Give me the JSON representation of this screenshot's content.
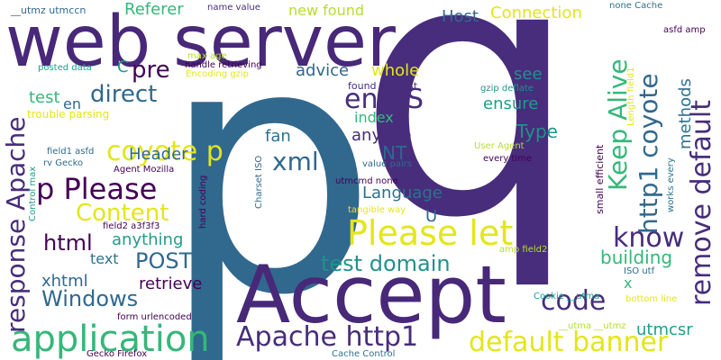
{
  "palette": {
    "dark": "#440154",
    "indigo": "#472d7b",
    "purple": "#482878",
    "blue": "#31688e",
    "steel": "#2c728e",
    "teal": "#21918c",
    "teal2": "#1f9e89",
    "green": "#35b779",
    "lime": "#6ece58",
    "yellowgreen": "#b5de2b",
    "yellow": "#e3e61a"
  },
  "words": [
    {
      "text": "q",
      "color": "#472d7b"
    },
    {
      "text": "p",
      "color": "#31688e"
    },
    {
      "text": "web server",
      "color": "#482878"
    },
    {
      "text": "Accept",
      "color": "#482878"
    },
    {
      "text": "application",
      "color": "#35b779"
    },
    {
      "text": "Please let",
      "color": "#e3e61a"
    },
    {
      "text": "Apache http1",
      "color": "#472d7b"
    },
    {
      "text": "default banner",
      "color": "#e3e61a"
    },
    {
      "text": "remove default",
      "color": "#472d7b"
    },
    {
      "text": "response Apache",
      "color": "#472d7b"
    },
    {
      "text": "p Please",
      "color": "#440154"
    },
    {
      "text": "coyote p",
      "color": "#e3e61a"
    },
    {
      "text": "know",
      "color": "#472d7b"
    },
    {
      "text": "http1 coyote",
      "color": "#31688e"
    },
    {
      "text": "Keep Alive",
      "color": "#35b779"
    },
    {
      "text": "Content",
      "color": "#e3e61a"
    },
    {
      "text": "test domain",
      "color": "#21918c"
    },
    {
      "text": "Windows",
      "color": "#31688e"
    },
    {
      "text": "code",
      "color": "#472d7b"
    },
    {
      "text": "en US",
      "color": "#472d7b"
    },
    {
      "text": "direct",
      "color": "#31688e"
    },
    {
      "text": "pre",
      "color": "#440154"
    },
    {
      "text": "xml",
      "color": "#31688e"
    },
    {
      "text": "html",
      "color": "#440154"
    },
    {
      "text": "POST",
      "color": "#31688e"
    },
    {
      "text": "Language",
      "color": "#2c728e"
    },
    {
      "text": "anything",
      "color": "#1f9e89"
    },
    {
      "text": "Header",
      "color": "#31688e"
    },
    {
      "text": "retrieve",
      "color": "#440154"
    },
    {
      "text": "building",
      "color": "#35b779"
    },
    {
      "text": "utmcsr",
      "color": "#1f9e89"
    },
    {
      "text": "Type",
      "color": "#21918c"
    },
    {
      "text": "NT",
      "color": "#31688e"
    },
    {
      "text": "anyone",
      "color": "#472d7b"
    },
    {
      "text": "fan",
      "color": "#2c728e"
    },
    {
      "text": "ensure",
      "color": "#1f9e89"
    },
    {
      "text": "index",
      "color": "#35b779"
    },
    {
      "text": "whole",
      "color": "#e3e61a"
    },
    {
      "text": "advice",
      "color": "#31688e"
    },
    {
      "text": "see",
      "color": "#21918c"
    },
    {
      "text": "methods",
      "color": "#2c728e"
    },
    {
      "text": "Host",
      "color": "#31688e"
    },
    {
      "text": "Connection",
      "color": "#e3e61a"
    },
    {
      "text": "new found",
      "color": "#b5de2b"
    },
    {
      "text": "Referer",
      "color": "#35b779"
    },
    {
      "text": "xhtml",
      "color": "#31688e"
    },
    {
      "text": "text",
      "color": "#2c728e"
    },
    {
      "text": "en",
      "color": "#31688e"
    },
    {
      "text": "test",
      "color": "#35b779"
    },
    {
      "text": "C",
      "color": "#1f9e89"
    },
    {
      "text": "U",
      "color": "#31688e"
    },
    {
      "text": "x",
      "color": "#35b779"
    },
    {
      "text": "__utmz utmccn",
      "color": "#31688e"
    },
    {
      "text": "name value",
      "color": "#472d7b"
    },
    {
      "text": "max age",
      "color": "#b5de2b"
    },
    {
      "text": "handle retrieving",
      "color": "#440154"
    },
    {
      "text": "Encoding gzip",
      "color": "#e3e61a"
    },
    {
      "text": "posted data",
      "color": "#1f9e89"
    },
    {
      "text": "trouble parsing",
      "color": "#e3e61a"
    },
    {
      "text": "found interest",
      "color": "#472d7b"
    },
    {
      "text": "gzip deflate",
      "color": "#21918c"
    },
    {
      "text": "User Agent",
      "color": "#b5de2b"
    },
    {
      "text": "every time",
      "color": "#440154"
    },
    {
      "text": "value pairs",
      "color": "#31688e"
    },
    {
      "text": "field1 asfd",
      "color": "#31688e"
    },
    {
      "text": "rv Gecko",
      "color": "#31688e"
    },
    {
      "text": "Agent Mozilla",
      "color": "#440154"
    },
    {
      "text": "utmcmd none",
      "color": "#440154"
    },
    {
      "text": "tangible way",
      "color": "#e3e61a"
    },
    {
      "text": "field2 a3f3f3",
      "color": "#440154"
    },
    {
      "text": "amp field2",
      "color": "#b5de2b"
    },
    {
      "text": "ISO utf",
      "color": "#31688e"
    },
    {
      "text": "Cookie __utma",
      "color": "#1f9e89"
    },
    {
      "text": "bottom line",
      "color": "#e3e61a"
    },
    {
      "text": "form urlencoded",
      "color": "#440154"
    },
    {
      "text": "__utma __utmz",
      "color": "#b5de2b"
    },
    {
      "text": "Gecko Firefox",
      "color": "#440154"
    },
    {
      "text": "Cache Control",
      "color": "#2c728e"
    },
    {
      "text": "none Cache",
      "color": "#2c728e"
    },
    {
      "text": "asfd amp",
      "color": "#440154"
    },
    {
      "text": "Control max",
      "color": "#1f9e89"
    },
    {
      "text": "hard coding",
      "color": "#440154"
    },
    {
      "text": "Charset ISO",
      "color": "#31688e"
    },
    {
      "text": "small efficient",
      "color": "#440154"
    },
    {
      "text": "Length field1",
      "color": "#e3e61a"
    },
    {
      "text": "works every",
      "color": "#2c728e"
    }
  ]
}
